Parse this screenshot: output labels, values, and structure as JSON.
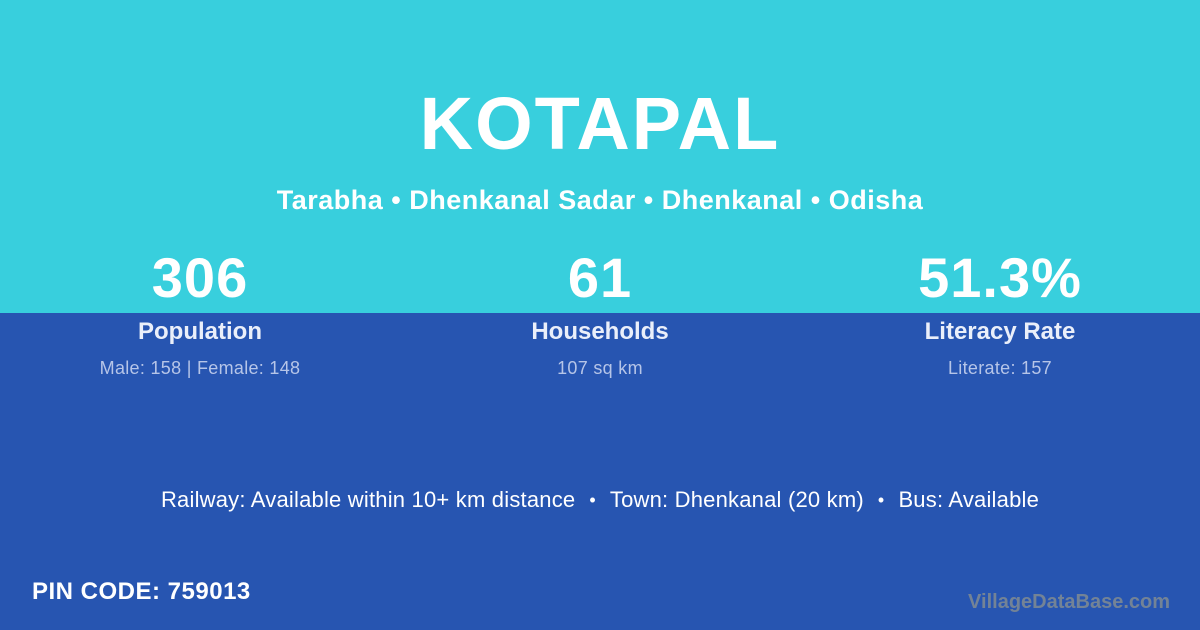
{
  "header": {
    "title": "KOTAPAL",
    "subtitle": "Tarabha • Dhenkanal Sadar • Dhenkanal • Odisha"
  },
  "stats": [
    {
      "value": "306",
      "label": "Population",
      "detail": "Male: 158 | Female: 148"
    },
    {
      "value": "61",
      "label": "Households",
      "detail": "107 sq km"
    },
    {
      "value": "51.3%",
      "label": "Literacy Rate",
      "detail": "Literate: 157"
    }
  ],
  "transport": {
    "railway": "Railway: Available within 10+ km distance",
    "town": "Town: Dhenkanal (20 km)",
    "bus": "Bus: Available",
    "separator": "•"
  },
  "footer": {
    "pin_code": "PIN CODE: 759013",
    "watermark": "VillageDataBase.com"
  },
  "colors": {
    "top_background": "#38CFDD",
    "bottom_background": "#2755B1",
    "text_primary": "#FFFFFF",
    "label_text": "#EAEFFA",
    "detail_text": "#B6C5E8",
    "watermark_text": "#7C8894"
  }
}
